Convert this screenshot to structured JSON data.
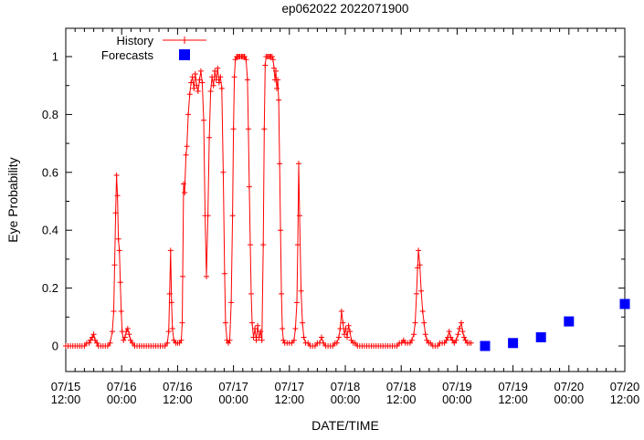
{
  "colors": {
    "history": "#ff0000",
    "forecast": "#0000ff",
    "axis": "#000000",
    "background": "#ffffff"
  },
  "chart_data": {
    "type": "line",
    "title": "ep062022 2022071900",
    "xlabel": "DATE/TIME",
    "ylabel": "Eye Probability",
    "grid": false,
    "x_axis": {
      "span_hours": 120,
      "major_tick_hours": 12,
      "minor_tick_hours": 2,
      "ticks": [
        [
          "07/15",
          "12:00"
        ],
        [
          "07/16",
          "00:00"
        ],
        [
          "07/16",
          "12:00"
        ],
        [
          "07/17",
          "00:00"
        ],
        [
          "07/17",
          "12:00"
        ],
        [
          "07/18",
          "00:00"
        ],
        [
          "07/18",
          "12:00"
        ],
        [
          "07/19",
          "00:00"
        ],
        [
          "07/19",
          "12:00"
        ],
        [
          "07/20",
          "00:00"
        ],
        [
          "07/20",
          "12:00"
        ]
      ]
    },
    "y_axis": {
      "min": -0.09,
      "max": 1.1,
      "major_step": 0.2,
      "minor_step": 0.1,
      "tick_labels": [
        "0",
        "0.2",
        "0.4",
        "0.6",
        "0.8",
        "1"
      ]
    },
    "legend": {
      "position": "top-left-inside",
      "entries": [
        {
          "label": "History",
          "marker": "line-with-plus",
          "color": "#ff0000"
        },
        {
          "label": "Forecasts",
          "marker": "filled-square",
          "color": "#0000ff"
        }
      ]
    },
    "series": [
      {
        "name": "History",
        "style": "line-with-plus-markers",
        "color": "#ff0000",
        "points_format": "[hours_after_07/15_12:00, eye_probability]",
        "points": [
          [
            0,
            0
          ],
          [
            0.5,
            0
          ],
          [
            1,
            0
          ],
          [
            1.5,
            0
          ],
          [
            2,
            0
          ],
          [
            2.5,
            0
          ],
          [
            3,
            0
          ],
          [
            3.5,
            0
          ],
          [
            4,
            0
          ],
          [
            4.5,
            0.01
          ],
          [
            5,
            0.01
          ],
          [
            5.3,
            0.02
          ],
          [
            5.7,
            0.03
          ],
          [
            6,
            0.04
          ],
          [
            6.3,
            0.02
          ],
          [
            6.7,
            0.01
          ],
          [
            7,
            0
          ],
          [
            7.5,
            0
          ],
          [
            8,
            0
          ],
          [
            8.5,
            0
          ],
          [
            9,
            0
          ],
          [
            9.5,
            0.01
          ],
          [
            10,
            0.05
          ],
          [
            10.3,
            0.12
          ],
          [
            10.5,
            0.28
          ],
          [
            10.7,
            0.46
          ],
          [
            10.9,
            0.59
          ],
          [
            11.1,
            0.52
          ],
          [
            11.3,
            0.37
          ],
          [
            11.5,
            0.33
          ],
          [
            11.7,
            0.22
          ],
          [
            11.9,
            0.12
          ],
          [
            12.1,
            0.05
          ],
          [
            12.4,
            0.02
          ],
          [
            12.7,
            0.03
          ],
          [
            13,
            0.05
          ],
          [
            13.3,
            0.06
          ],
          [
            13.6,
            0.04
          ],
          [
            13.9,
            0.02
          ],
          [
            14.3,
            0.01
          ],
          [
            14.8,
            0
          ],
          [
            15.3,
            0
          ],
          [
            15.8,
            0
          ],
          [
            16.3,
            0
          ],
          [
            16.8,
            0
          ],
          [
            17.3,
            0
          ],
          [
            17.8,
            0
          ],
          [
            18.3,
            0
          ],
          [
            18.8,
            0
          ],
          [
            19.3,
            0
          ],
          [
            19.8,
            0
          ],
          [
            20.3,
            0
          ],
          [
            20.8,
            0
          ],
          [
            21.3,
            0
          ],
          [
            21.8,
            0.01
          ],
          [
            22.1,
            0.05
          ],
          [
            22.3,
            0.18
          ],
          [
            22.5,
            0.33
          ],
          [
            22.7,
            0.15
          ],
          [
            22.9,
            0.06
          ],
          [
            23.2,
            0.02
          ],
          [
            23.6,
            0.01
          ],
          [
            24,
            0.01
          ],
          [
            24.4,
            0.01
          ],
          [
            24.8,
            0.02
          ],
          [
            25,
            0.08
          ],
          [
            25.1,
            0.24
          ],
          [
            25.3,
            0.56
          ],
          [
            25.5,
            0.53
          ],
          [
            25.8,
            0.66
          ],
          [
            26,
            0.69
          ],
          [
            26.3,
            0.8
          ],
          [
            26.6,
            0.87
          ],
          [
            26.9,
            0.91
          ],
          [
            27.2,
            0.93
          ],
          [
            27.5,
            0.89
          ],
          [
            27.8,
            0.94
          ],
          [
            28.1,
            0.9
          ],
          [
            28.4,
            0.88
          ],
          [
            28.7,
            0.92
          ],
          [
            29,
            0.95
          ],
          [
            29.3,
            0.91
          ],
          [
            29.6,
            0.78
          ],
          [
            29.9,
            0.45
          ],
          [
            30.2,
            0.24
          ],
          [
            30.5,
            0.45
          ],
          [
            30.8,
            0.72
          ],
          [
            31.1,
            0.88
          ],
          [
            31.4,
            0.93
          ],
          [
            31.7,
            0.9
          ],
          [
            32,
            0.95
          ],
          [
            32.3,
            0.92
          ],
          [
            32.6,
            0.96
          ],
          [
            32.9,
            0.91
          ],
          [
            33.2,
            0.93
          ],
          [
            33.5,
            0.89
          ],
          [
            33.8,
            0.6
          ],
          [
            34.1,
            0.25
          ],
          [
            34.3,
            0.08
          ],
          [
            34.6,
            0.02
          ],
          [
            34.9,
            0.01
          ],
          [
            35.2,
            0.02
          ],
          [
            35.5,
            0.15
          ],
          [
            35.8,
            0.45
          ],
          [
            36,
            0.75
          ],
          [
            36.2,
            0.93
          ],
          [
            36.4,
            0.99
          ],
          [
            36.7,
            1
          ],
          [
            36.9,
            1
          ],
          [
            37.2,
            1
          ],
          [
            37.4,
            1
          ],
          [
            37.7,
            1
          ],
          [
            37.9,
            1
          ],
          [
            38.2,
            1
          ],
          [
            38.4,
            1
          ],
          [
            38.7,
            0.99
          ],
          [
            39,
            0.92
          ],
          [
            39.2,
            0.75
          ],
          [
            39.4,
            0.55
          ],
          [
            39.6,
            0.35
          ],
          [
            39.8,
            0.18
          ],
          [
            40,
            0.08
          ],
          [
            40.3,
            0.03
          ],
          [
            40.6,
            0.06
          ],
          [
            40.9,
            0.02
          ],
          [
            41.2,
            0.07
          ],
          [
            41.5,
            0.03
          ],
          [
            41.8,
            0.05
          ],
          [
            42.1,
            0.02
          ],
          [
            42.4,
            0.35
          ],
          [
            42.6,
            0.75
          ],
          [
            42.8,
            0.97
          ],
          [
            43,
            1
          ],
          [
            43.3,
            1
          ],
          [
            43.5,
            1
          ],
          [
            43.8,
            1
          ],
          [
            44,
            1
          ],
          [
            44.3,
            1
          ],
          [
            44.5,
            0.99
          ],
          [
            44.7,
            0.96
          ],
          [
            44.9,
            0.92
          ],
          [
            45.1,
            0.95
          ],
          [
            45.3,
            0.89
          ],
          [
            45.5,
            0.92
          ],
          [
            45.7,
            0.85
          ],
          [
            45.9,
            0.63
          ],
          [
            46.1,
            0.4
          ],
          [
            46.3,
            0.18
          ],
          [
            46.5,
            0.06
          ],
          [
            46.7,
            0.02
          ],
          [
            47,
            0.01
          ],
          [
            47.5,
            0.01
          ],
          [
            48,
            0.01
          ],
          [
            48.5,
            0.01
          ],
          [
            49,
            0.02
          ],
          [
            49.3,
            0.06
          ],
          [
            49.6,
            0.15
          ],
          [
            49.8,
            0.35
          ],
          [
            50,
            0.63
          ],
          [
            50.2,
            0.45
          ],
          [
            50.5,
            0.19
          ],
          [
            50.8,
            0.08
          ],
          [
            51.1,
            0.03
          ],
          [
            51.5,
            0.01
          ],
          [
            52,
            0.01
          ],
          [
            52.5,
            0
          ],
          [
            53,
            0
          ],
          [
            53.5,
            0
          ],
          [
            54,
            0.01
          ],
          [
            54.5,
            0.01
          ],
          [
            54.9,
            0.03
          ],
          [
            55.3,
            0.01
          ],
          [
            55.8,
            0
          ],
          [
            56.3,
            0
          ],
          [
            56.8,
            0
          ],
          [
            57.3,
            0
          ],
          [
            57.8,
            0.01
          ],
          [
            58.2,
            0.01
          ],
          [
            58.6,
            0.03
          ],
          [
            58.9,
            0.06
          ],
          [
            59.2,
            0.12
          ],
          [
            59.5,
            0.08
          ],
          [
            59.8,
            0.04
          ],
          [
            60.1,
            0.06
          ],
          [
            60.4,
            0.03
          ],
          [
            60.7,
            0.07
          ],
          [
            61,
            0.05
          ],
          [
            61.3,
            0.02
          ],
          [
            61.7,
            0.01
          ],
          [
            62.1,
            0.01
          ],
          [
            62.6,
            0
          ],
          [
            63.1,
            0
          ],
          [
            63.6,
            0
          ],
          [
            64.1,
            0
          ],
          [
            64.6,
            0
          ],
          [
            65.1,
            0
          ],
          [
            65.6,
            0
          ],
          [
            66.1,
            0
          ],
          [
            66.6,
            0
          ],
          [
            67.1,
            0
          ],
          [
            67.6,
            0
          ],
          [
            68.1,
            0
          ],
          [
            68.6,
            0
          ],
          [
            69.1,
            0
          ],
          [
            69.6,
            0
          ],
          [
            70.1,
            0
          ],
          [
            70.6,
            0
          ],
          [
            71.1,
            0
          ],
          [
            71.6,
            0.01
          ],
          [
            72.1,
            0.01
          ],
          [
            72.5,
            0.02
          ],
          [
            72.9,
            0.01
          ],
          [
            73.4,
            0.01
          ],
          [
            73.9,
            0.01
          ],
          [
            74.3,
            0.02
          ],
          [
            74.7,
            0.04
          ],
          [
            75,
            0.08
          ],
          [
            75.3,
            0.18
          ],
          [
            75.5,
            0.27
          ],
          [
            75.7,
            0.33
          ],
          [
            76,
            0.28
          ],
          [
            76.3,
            0.19
          ],
          [
            76.6,
            0.12
          ],
          [
            76.9,
            0.08
          ],
          [
            77.2,
            0.04
          ],
          [
            77.5,
            0.02
          ],
          [
            77.9,
            0.01
          ],
          [
            78.3,
            0.01
          ],
          [
            78.8,
            0
          ],
          [
            79.3,
            0
          ],
          [
            79.8,
            0
          ],
          [
            80.3,
            0.01
          ],
          [
            80.8,
            0.01
          ],
          [
            81.3,
            0.01
          ],
          [
            81.7,
            0.02
          ],
          [
            82,
            0.03
          ],
          [
            82.3,
            0.05
          ],
          [
            82.6,
            0.03
          ],
          [
            83,
            0.02
          ],
          [
            83.4,
            0.01
          ],
          [
            83.8,
            0.02
          ],
          [
            84.2,
            0.04
          ],
          [
            84.5,
            0.06
          ],
          [
            84.9,
            0.08
          ],
          [
            85.2,
            0.05
          ],
          [
            85.5,
            0.03
          ],
          [
            85.8,
            0.02
          ],
          [
            86.2,
            0.01
          ],
          [
            86.6,
            0.01
          ],
          [
            87,
            0.01
          ]
        ]
      },
      {
        "name": "Forecasts",
        "style": "filled-squares",
        "color": "#0000ff",
        "points_format": "[hours_after_07/15_12:00, eye_probability]",
        "points": [
          [
            90,
            0
          ],
          [
            96,
            0.01
          ],
          [
            102,
            0.03
          ],
          [
            108,
            0.085
          ],
          [
            120,
            0.145
          ]
        ]
      }
    ]
  }
}
